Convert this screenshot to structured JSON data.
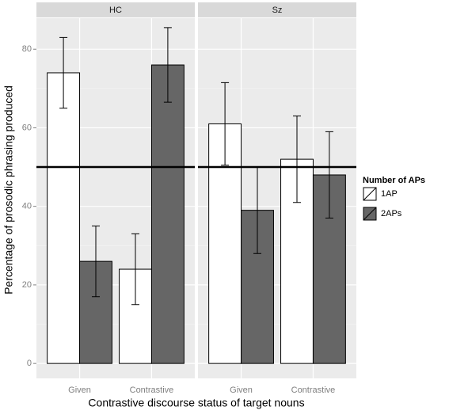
{
  "chart_data": {
    "type": "bar",
    "xlabel": "Contrastive discourse status of target nouns",
    "ylabel": "Percentage of prosodic phrasing produced",
    "categories": [
      "Given",
      "Contrastive"
    ],
    "legend_title": "Number of APs",
    "hline": 50,
    "ylim": [
      -3.8,
      87.9
    ],
    "yticks": [
      0,
      20,
      40,
      60,
      80
    ],
    "grid": true,
    "facets": [
      {
        "name": "HC",
        "series": [
          {
            "name": "1AP",
            "color": "#ffffff",
            "values": [
              74,
              24
            ],
            "errors": [
              9,
              9
            ]
          },
          {
            "name": "2APs",
            "color": "#666666",
            "values": [
              26,
              76
            ],
            "errors": [
              9,
              9.5
            ]
          }
        ]
      },
      {
        "name": "Sz",
        "series": [
          {
            "name": "1AP",
            "color": "#ffffff",
            "values": [
              61,
              52
            ],
            "errors": [
              10.5,
              11
            ]
          },
          {
            "name": "2APs",
            "color": "#666666",
            "values": [
              39,
              48
            ],
            "errors": [
              11,
              11
            ]
          }
        ]
      }
    ]
  }
}
